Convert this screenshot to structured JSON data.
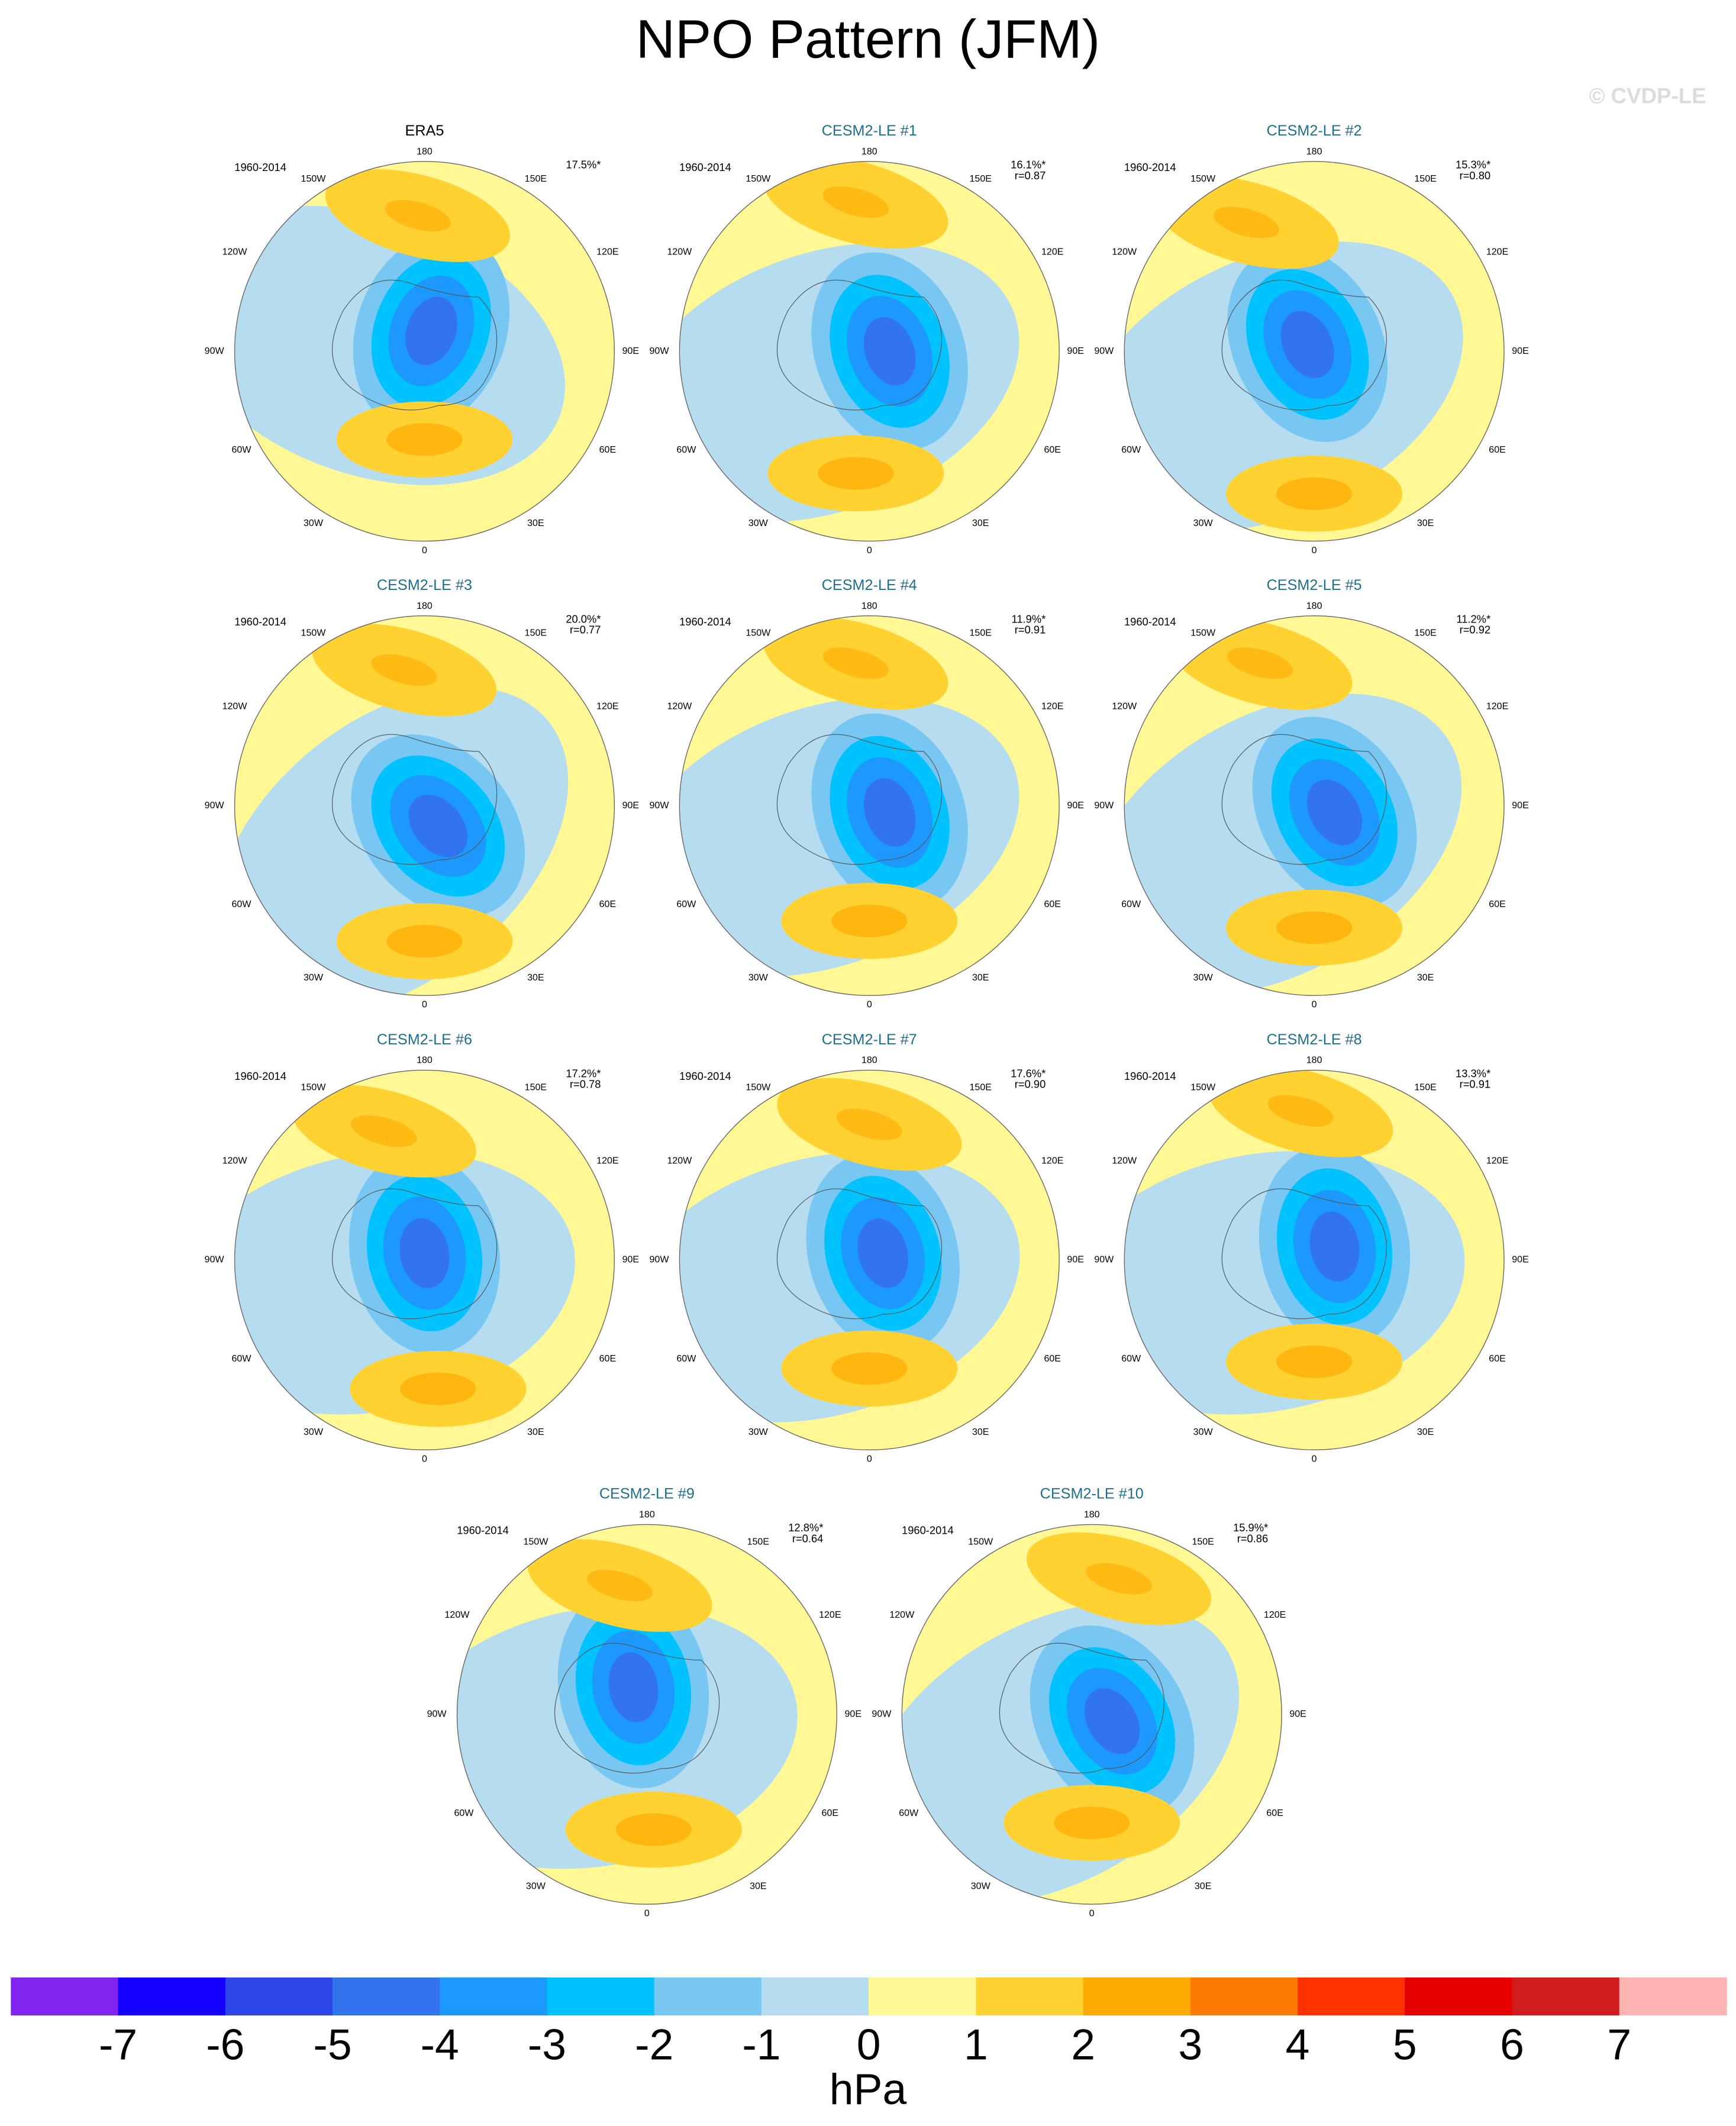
{
  "title": "NPO Pattern (JFM)",
  "watermark": "© CVDP-LE",
  "period": "1960-2014",
  "lon_labels": [
    "180",
    "150E",
    "120E",
    "90E",
    "60E",
    "30E",
    "0",
    "30W",
    "60W",
    "90W",
    "120W",
    "150W"
  ],
  "panels": [
    {
      "title": "ERA5",
      "pct": "17.5%*"
    },
    {
      "title": "CESM2-LE #1",
      "pct": "16.1%*",
      "r": "r=0.87"
    },
    {
      "title": "CESM2-LE #2",
      "pct": "15.3%*",
      "r": "r=0.80"
    },
    {
      "title": "CESM2-LE #3",
      "pct": "20.0%*",
      "r": "r=0.77"
    },
    {
      "title": "CESM2-LE #4",
      "pct": "11.9%*",
      "r": "r=0.91"
    },
    {
      "title": "CESM2-LE #5",
      "pct": "11.2%*",
      "r": "r=0.92"
    },
    {
      "title": "CESM2-LE #6",
      "pct": "17.2%*",
      "r": "r=0.78"
    },
    {
      "title": "CESM2-LE #7",
      "pct": "17.6%*",
      "r": "r=0.90"
    },
    {
      "title": "CESM2-LE #8",
      "pct": "13.3%*",
      "r": "r=0.91"
    },
    {
      "title": "CESM2-LE #9",
      "pct": "12.8%*",
      "r": "r=0.64"
    },
    {
      "title": "CESM2-LE #10",
      "pct": "15.9%*",
      "r": "r=0.86"
    }
  ],
  "colorbar": {
    "colors": [
      "#8124f0",
      "#1400ff",
      "#2c46e8",
      "#3274ee",
      "#1c98ff",
      "#00c2ff",
      "#78c6f2",
      "#b6dcf0",
      "#fff894",
      "#ffd232",
      "#ffaa00",
      "#ff7a00",
      "#ff3200",
      "#e60000",
      "#d01c1c",
      "#ffb4b4"
    ],
    "ticks": [
      -7,
      -6,
      -5,
      -4,
      -3,
      -2,
      -1,
      0,
      1,
      2,
      3,
      4,
      5,
      6,
      7
    ],
    "label": "hPa"
  }
}
